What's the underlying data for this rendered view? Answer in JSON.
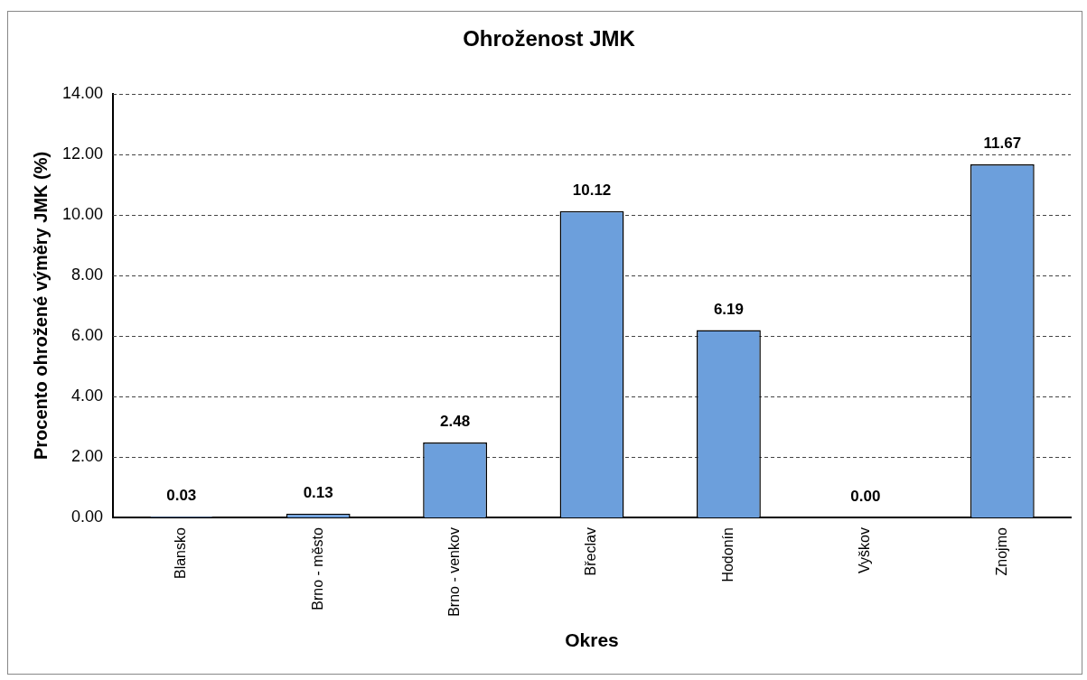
{
  "chart_data": {
    "type": "bar",
    "title": "Ohroženost JMK",
    "xlabel": "Okres",
    "ylabel": "Procento ohrožené výměry JMK (%)",
    "categories": [
      "Blansko",
      "Brno - město",
      "Brno - venkov",
      "Břeclav",
      "Hodonín",
      "Vyškov",
      "Znojmo"
    ],
    "values": [
      0.03,
      0.13,
      2.48,
      10.12,
      6.19,
      0.0,
      11.67
    ],
    "value_labels": [
      "0.03",
      "0.13",
      "2.48",
      "10.12",
      "6.19",
      "0.00",
      "11.67"
    ],
    "color": "#6c9fdc",
    "ylim": [
      0,
      14
    ],
    "yticks": [
      {
        "value": 0,
        "label": "0.00"
      },
      {
        "value": 2,
        "label": "2.00"
      },
      {
        "value": 4,
        "label": "4.00"
      },
      {
        "value": 6,
        "label": "6.00"
      },
      {
        "value": 8,
        "label": "8.00"
      },
      {
        "value": 10,
        "label": "10.00"
      },
      {
        "value": 12,
        "label": "12.00"
      },
      {
        "value": 14,
        "label": "14.00"
      }
    ],
    "grid": "y",
    "legend": false
  }
}
